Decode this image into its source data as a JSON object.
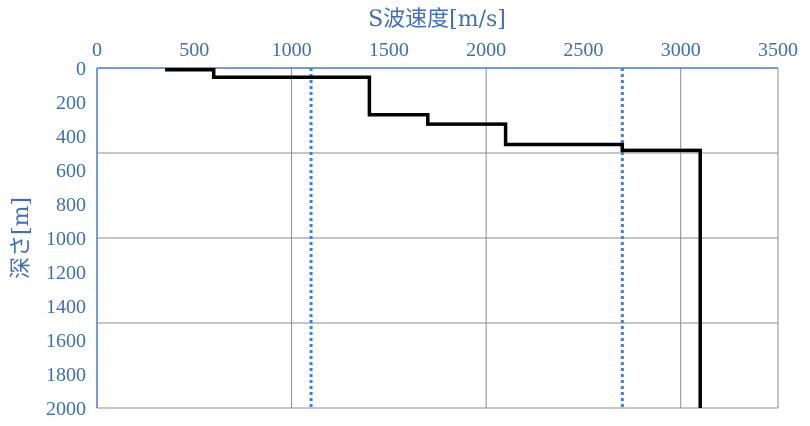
{
  "chart_data": {
    "type": "line",
    "xlabel": "S波速度[m/s]",
    "ylabel": "深さ[m]",
    "xlim": [
      0,
      3500
    ],
    "ylim": [
      0,
      2000
    ],
    "y_inverted": true,
    "x_axis_position": "top",
    "x_ticks": [
      0,
      500,
      1000,
      1500,
      2000,
      2500,
      3000,
      3500
    ],
    "y_ticks": [
      0,
      200,
      400,
      600,
      800,
      1000,
      1200,
      1400,
      1600,
      1800,
      2000
    ],
    "gridlines_y": [
      500,
      1000,
      1500
    ],
    "gridlines_x": [
      1000,
      2000,
      3000
    ],
    "profile": {
      "style": "step",
      "color": "#000000",
      "points": [
        [
          350,
          10
        ],
        [
          600,
          10
        ],
        [
          600,
          55
        ],
        [
          1400,
          55
        ],
        [
          1400,
          275
        ],
        [
          1700,
          275
        ],
        [
          1700,
          330
        ],
        [
          2100,
          330
        ],
        [
          2100,
          450
        ],
        [
          2700,
          450
        ],
        [
          2700,
          485
        ],
        [
          3100,
          485
        ],
        [
          3100,
          2000
        ]
      ]
    },
    "reference_lines": [
      {
        "x": 1100,
        "style": "dotted",
        "color": "#3f7fe0"
      },
      {
        "x": 2700,
        "style": "dotted",
        "color": "#3f7fe0"
      }
    ],
    "colors": {
      "axis_text": "#3f6fb8",
      "grid": "#8c8c8c",
      "axis": "#4a7ac8"
    }
  }
}
